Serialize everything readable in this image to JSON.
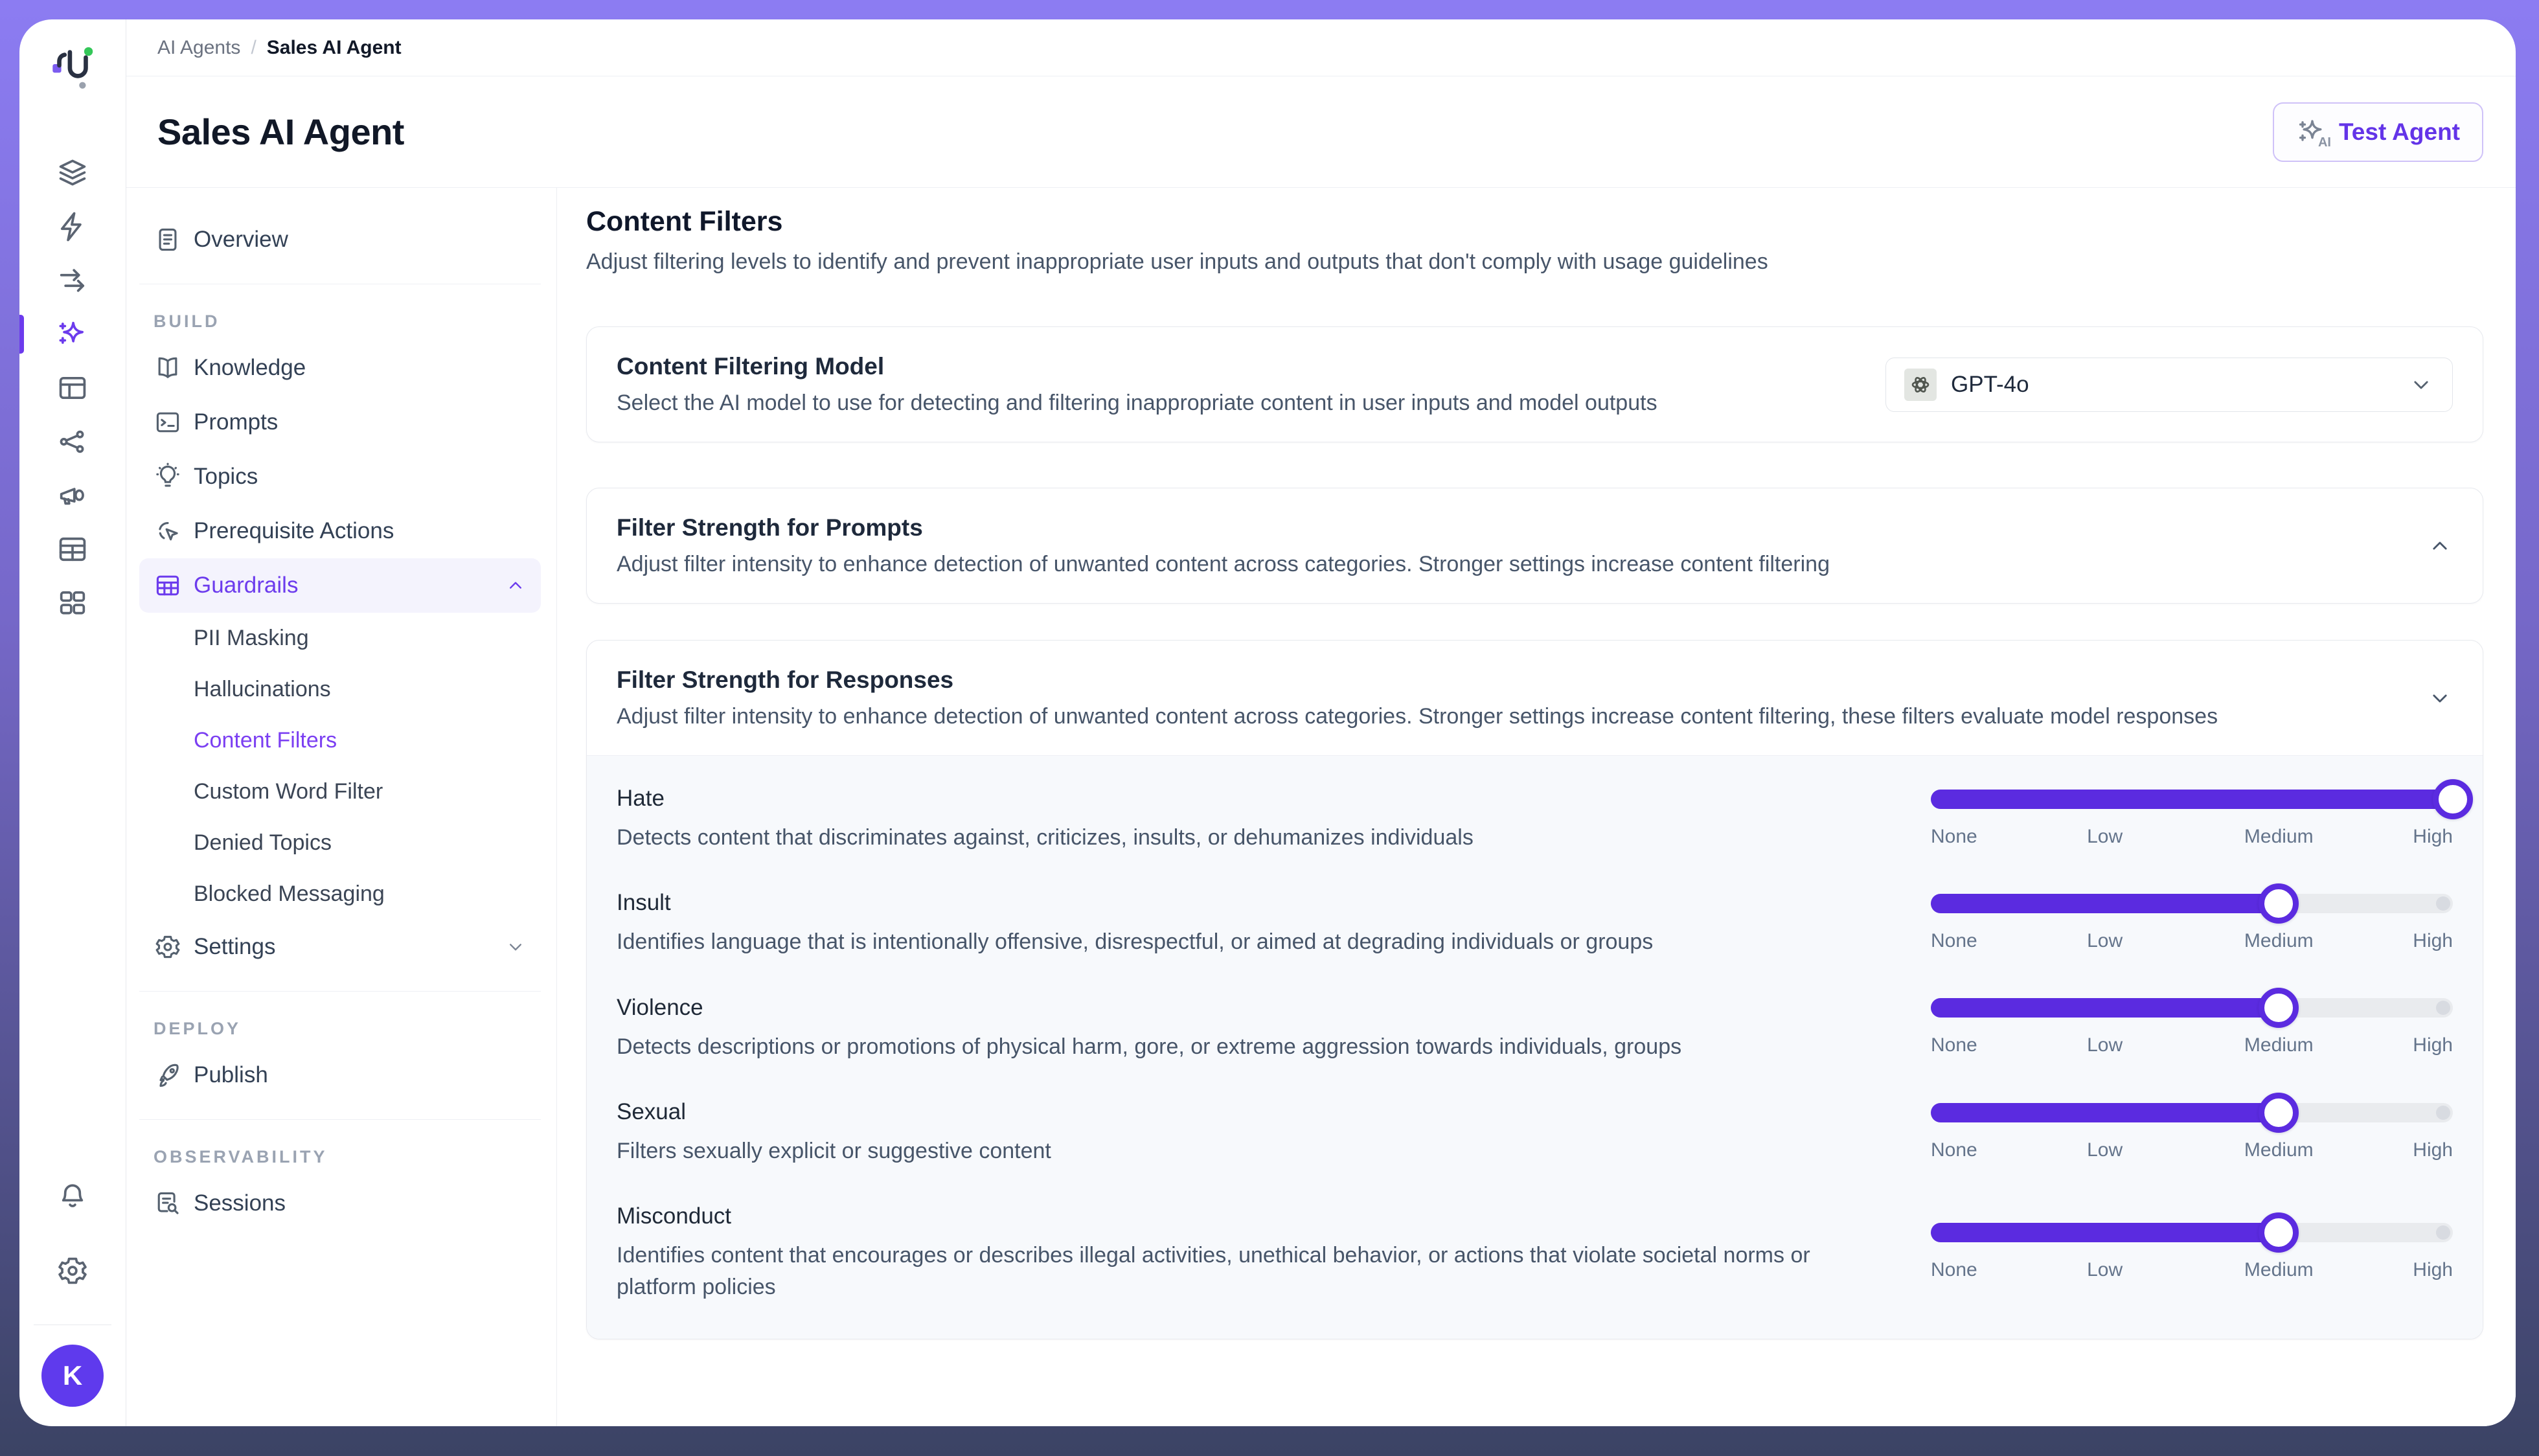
{
  "theme": {
    "accent": "#6c3bed",
    "slider_fill": "#5b2be0",
    "top_band": "#8c7cf2",
    "bottom_band": "#3b4364",
    "avatar_bg": "#5f3aed",
    "active_row_bg": "#f4f3fd"
  },
  "rail": {
    "icons": [
      "layers",
      "zap",
      "arrows-right",
      "sparkle",
      "panel",
      "share",
      "megaphone",
      "table",
      "grid"
    ],
    "active_icon": "sparkle",
    "bottom_icons": [
      "bell",
      "gear"
    ],
    "avatar_letter": "K"
  },
  "breadcrumb": {
    "parent": "AI Agents",
    "separator": "/",
    "current": "Sales AI Agent"
  },
  "header": {
    "title": "Sales AI Agent",
    "test_agent_label": "Test Agent",
    "test_agent_icon": "sparkle-ai-icon"
  },
  "sidebar": {
    "groups": [
      {
        "items": [
          {
            "id": "overview",
            "label": "Overview",
            "icon": "doc"
          }
        ]
      },
      {
        "label": "BUILD",
        "items": [
          {
            "id": "knowledge",
            "label": "Knowledge",
            "icon": "book"
          },
          {
            "id": "prompts",
            "label": "Prompts",
            "icon": "terminal"
          },
          {
            "id": "topics",
            "label": "Topics",
            "icon": "bulb"
          },
          {
            "id": "prerequisite-actions",
            "label": "Prerequisite Actions",
            "icon": "click"
          },
          {
            "id": "guardrails",
            "label": "Guardrails",
            "icon": "gridtable",
            "active": true,
            "chevron": "up",
            "children": [
              {
                "id": "pii-masking",
                "label": "PII Masking"
              },
              {
                "id": "hallucinations",
                "label": "Hallucinations"
              },
              {
                "id": "content-filters",
                "label": "Content Filters",
                "active": true
              },
              {
                "id": "custom-word-filter",
                "label": "Custom Word Filter"
              },
              {
                "id": "denied-topics",
                "label": "Denied Topics"
              },
              {
                "id": "blocked-messaging",
                "label": "Blocked Messaging"
              }
            ]
          },
          {
            "id": "settings",
            "label": "Settings",
            "icon": "gear",
            "chevron": "down"
          }
        ]
      },
      {
        "label": "DEPLOY",
        "items": [
          {
            "id": "publish",
            "label": "Publish",
            "icon": "rocket"
          }
        ]
      },
      {
        "label": "OBSERVABILITY",
        "items": [
          {
            "id": "sessions",
            "label": "Sessions",
            "icon": "docsearch"
          }
        ]
      }
    ]
  },
  "main": {
    "heading": "Content Filters",
    "description": "Adjust filtering levels to identify and prevent inappropriate user inputs and outputs that don't comply with usage guidelines",
    "model_card": {
      "title": "Content Filtering Model",
      "description": "Select the AI model to use for detecting and filtering inappropriate content in user inputs and model outputs",
      "selected_model": "GPT-4o",
      "model_icon": "openai-icon"
    },
    "prompts_card": {
      "title": "Filter Strength for Prompts",
      "description": "Adjust filter intensity to enhance detection of unwanted content across categories. Stronger settings increase content filtering",
      "state": "expanded",
      "chevron": "up"
    },
    "responses_card": {
      "title": "Filter Strength for Responses",
      "description": "Adjust filter intensity to enhance detection of unwanted content across categories. Stronger settings increase content filtering, these filters evaluate model responses",
      "chevron": "down",
      "slider_labels": [
        "None",
        "Low",
        "Medium",
        "High"
      ],
      "filters": [
        {
          "name": "Hate",
          "description": "Detects content that discriminates against, criticizes, insults, or dehumanizes individuals",
          "level": "High",
          "value": 3,
          "max": 3
        },
        {
          "name": "Insult",
          "description": "Identifies language that is intentionally offensive, disrespectful, or aimed at degrading individuals or groups",
          "level": "Medium",
          "value": 2,
          "max": 3
        },
        {
          "name": "Violence",
          "description": "Detects descriptions or promotions of physical harm, gore, or extreme aggression towards individuals, groups",
          "level": "Medium",
          "value": 2,
          "max": 3
        },
        {
          "name": "Sexual",
          "description": "Filters sexually explicit or suggestive content",
          "level": "Medium",
          "value": 2,
          "max": 3
        },
        {
          "name": "Misconduct",
          "description": "Identifies content that encourages or describes illegal activities, unethical behavior, or actions that violate societal norms or platform policies",
          "level": "Medium",
          "value": 2,
          "max": 3
        }
      ]
    }
  }
}
